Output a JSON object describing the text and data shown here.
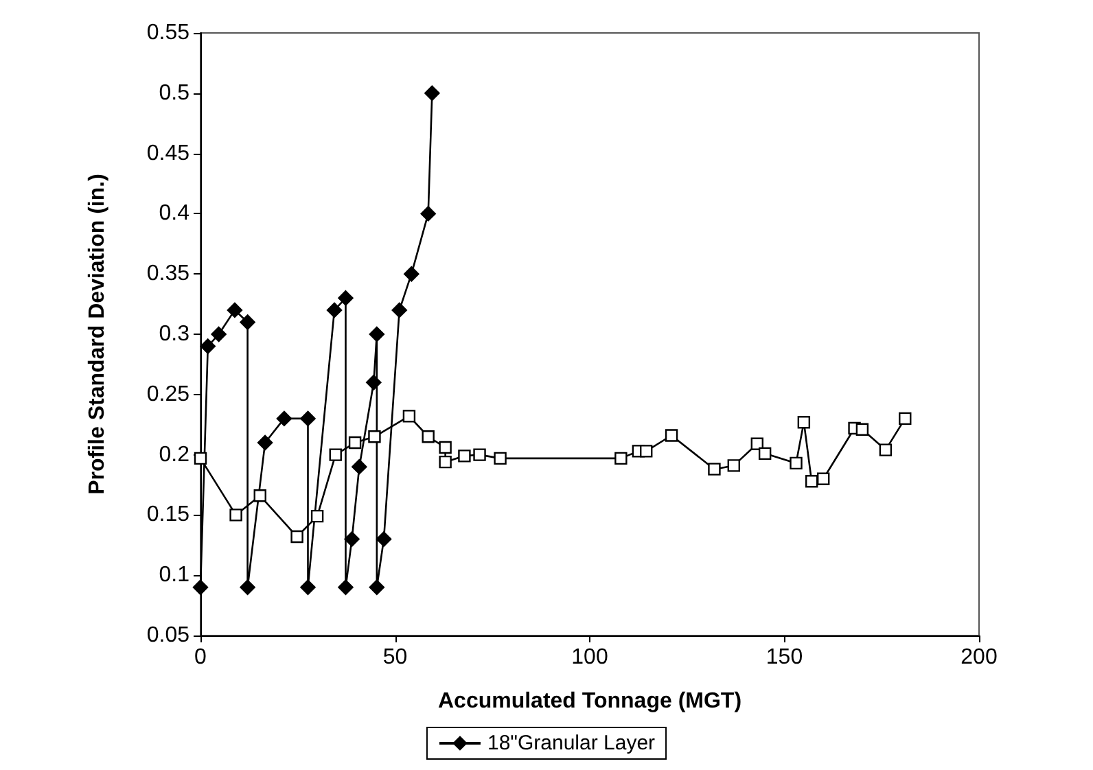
{
  "chart_data": {
    "type": "line",
    "xlabel": "Accumulated Tonnage (MGT)",
    "ylabel": "Profile Standard Deviation (in.)",
    "xlim": [
      0,
      200
    ],
    "xticks": [
      0,
      50,
      100,
      150,
      200
    ],
    "ylim": [
      0.05,
      0.55
    ],
    "yticks": [
      0.05,
      0.1,
      0.15,
      0.2,
      0.25,
      0.3,
      0.35,
      0.4,
      0.45,
      0.5,
      0.55
    ],
    "grid": false,
    "legend": "bottom",
    "line_style": "solid",
    "series": [
      {
        "name": "18\"Granular Layer",
        "color": "#000000",
        "marker": "diamond",
        "x": [
          0,
          1.9,
          4.7,
          8.8,
          12.1,
          12.1,
          16.6,
          21.5,
          27.6,
          27.6,
          34.4,
          37.3,
          37.3,
          38.9,
          40.8,
          44.5,
          45.3,
          45.3,
          47.1,
          51.1,
          54.2,
          58.5,
          59.5
        ],
        "values": [
          0.09,
          0.29,
          0.3,
          0.32,
          0.31,
          0.09,
          0.21,
          0.23,
          0.23,
          0.09,
          0.32,
          0.33,
          0.09,
          0.13,
          0.19,
          0.26,
          0.3,
          0.09,
          0.13,
          0.32,
          0.35,
          0.4,
          0.5
        ]
      },
      {
        "color": "#000000",
        "marker": "square",
        "x": [
          0,
          9.1,
          15.3,
          24.8,
          30,
          34.7,
          39.7,
          44.7,
          53.6,
          58.5,
          62.9,
          62.9,
          67.8,
          71.7,
          77,
          108,
          112.5,
          114.5,
          121,
          132,
          137,
          143,
          145,
          153,
          155,
          157,
          160,
          168,
          170,
          176,
          181
        ],
        "values": [
          0.197,
          0.15,
          0.166,
          0.132,
          0.149,
          0.2,
          0.21,
          0.215,
          0.232,
          0.215,
          0.206,
          0.194,
          0.199,
          0.2,
          0.197,
          0.197,
          0.203,
          0.203,
          0.216,
          0.188,
          0.191,
          0.209,
          0.201,
          0.193,
          0.227,
          0.178,
          0.18,
          0.222,
          0.221,
          0.204,
          0.23
        ]
      }
    ]
  }
}
